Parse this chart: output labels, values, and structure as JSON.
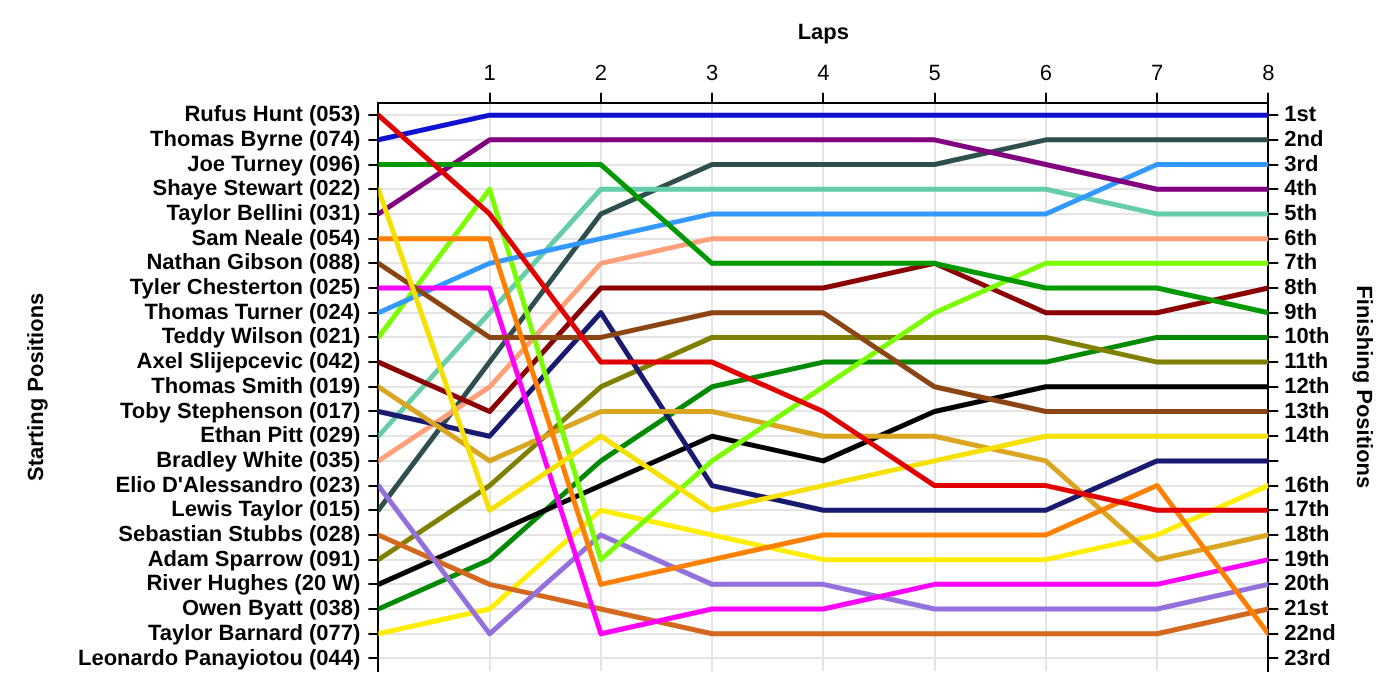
{
  "chart_data": {
    "type": "line",
    "xlabel": "Laps",
    "ylabel": "Finishing Positions",
    "annotations": [
      "Starting Positions",
      "Rufus Hunt (053)",
      "Thomas Byrne (074)",
      "Joe Turney (096)",
      "Shaye Stewart (022)",
      "Taylor Bellini (031)",
      "Sam Neale (054)",
      "Nathan Gibson (088)",
      "Tyler Chesterton (025)",
      "Thomas Turner (024)",
      "Teddy Wilson (021)",
      "Axel Slijepcevic (042)",
      "Thomas Smith (019)",
      "Toby Stephenson (017)",
      "Ethan Pitt (029)",
      "Bradley White (035)",
      "Elio D'Alessandro (023)",
      "Lewis Taylor (015)",
      "Sebastian Stubbs (028)",
      "Adam Sparrow (091)",
      "River Hughes (20 W)",
      "Owen Byatt (038)",
      "Taylor Barnard (077)",
      "Leonardo Panayiotou (044)"
    ],
    "x": [
      0,
      1,
      2,
      3,
      4,
      5,
      6,
      7,
      8
    ],
    "xlim": [
      0,
      8
    ],
    "xticks": [
      1,
      2,
      3,
      4,
      5,
      6,
      7,
      8
    ],
    "ylim": [
      23.5,
      0.5
    ],
    "yticks": [
      {
        "value": 1,
        "label": "1st"
      },
      {
        "value": 2,
        "label": "2nd"
      },
      {
        "value": 3,
        "label": "3rd"
      },
      {
        "value": 4,
        "label": "4th"
      },
      {
        "value": 5,
        "label": "5th"
      },
      {
        "value": 6,
        "label": "6th"
      },
      {
        "value": 7,
        "label": "7th"
      },
      {
        "value": 8,
        "label": "8th"
      },
      {
        "value": 9,
        "label": "9th"
      },
      {
        "value": 10,
        "label": "10th"
      },
      {
        "value": 11,
        "label": "11th"
      },
      {
        "value": 12,
        "label": "12th"
      },
      {
        "value": 13,
        "label": "13th"
      },
      {
        "value": 14,
        "label": "14th"
      },
      {
        "value": 15,
        "label": null
      },
      {
        "value": 16,
        "label": "16th"
      },
      {
        "value": 17,
        "label": "17th"
      },
      {
        "value": 18,
        "label": "18th"
      },
      {
        "value": 19,
        "label": "19th"
      },
      {
        "value": 20,
        "label": "20th"
      },
      {
        "value": 21,
        "label": "21st"
      },
      {
        "value": 22,
        "label": "22nd"
      },
      {
        "value": 23,
        "label": "23rd"
      }
    ],
    "grid": true,
    "legend": false,
    "marker": "none",
    "line_style": "solid",
    "series": [
      {
        "color": "#e00000",
        "values": [
          1,
          5,
          11,
          11,
          13,
          16,
          16,
          17,
          17
        ]
      },
      {
        "color": "#1010d0",
        "values": [
          2,
          1,
          1,
          1,
          1,
          1,
          1,
          1,
          1
        ]
      },
      {
        "color": "#009900",
        "values": [
          3,
          3,
          3,
          7,
          7,
          7,
          8,
          8,
          9
        ]
      },
      {
        "color": "#f5e000",
        "values": [
          4,
          17,
          14,
          17,
          16,
          15,
          14,
          14,
          14
        ]
      },
      {
        "color": "#800080",
        "values": [
          5,
          2,
          2,
          2,
          2,
          2,
          3,
          4,
          4
        ]
      },
      {
        "color": "#ff8000",
        "values": [
          6,
          6,
          20,
          19,
          18,
          18,
          18,
          16,
          22
        ]
      },
      {
        "color": "#8b4513",
        "values": [
          7,
          10,
          10,
          9,
          9,
          12,
          13,
          13,
          13
        ]
      },
      {
        "color": "#ff00ff",
        "values": [
          8,
          8,
          22,
          21,
          21,
          20,
          20,
          20,
          19
        ]
      },
      {
        "color": "#3399ff",
        "values": [
          9,
          7,
          6,
          5,
          5,
          5,
          5,
          3,
          3
        ]
      },
      {
        "color": "#7cfc00",
        "values": [
          10,
          4,
          19,
          15,
          12,
          9,
          7,
          7,
          7
        ]
      },
      {
        "color": "#8b0000",
        "values": [
          11,
          13,
          8,
          8,
          8,
          7,
          9,
          9,
          8
        ]
      },
      {
        "color": "#daa520",
        "values": [
          12,
          15,
          13,
          13,
          14,
          14,
          15,
          19,
          18
        ]
      },
      {
        "color": "#191970",
        "values": [
          13,
          14,
          9,
          16,
          17,
          17,
          17,
          15,
          15
        ]
      },
      {
        "color": "#66cdaa",
        "values": [
          14,
          9,
          4,
          4,
          4,
          4,
          4,
          5,
          5
        ]
      },
      {
        "color": "#ffa07a",
        "values": [
          15,
          12,
          7,
          6,
          6,
          6,
          6,
          6,
          6
        ]
      },
      {
        "color": "#9370db",
        "values": [
          16,
          22,
          18,
          20,
          20,
          21,
          21,
          21,
          20
        ]
      },
      {
        "color": "#2f4f4f",
        "values": [
          17,
          11,
          5,
          3,
          3,
          3,
          2,
          2,
          2
        ]
      },
      {
        "color": "#d2691e",
        "values": [
          18,
          20,
          21,
          22,
          22,
          22,
          22,
          22,
          21
        ]
      },
      {
        "color": "#808000",
        "values": [
          19,
          16,
          12,
          10,
          10,
          10,
          10,
          11,
          11
        ]
      },
      {
        "color": "#000000",
        "values": [
          20,
          18,
          16,
          14,
          15,
          13,
          12,
          12,
          12
        ]
      },
      {
        "color": "#008a00",
        "values": [
          21,
          19,
          15,
          12,
          11,
          11,
          11,
          10,
          10
        ]
      },
      {
        "color": "#ffee00",
        "values": [
          22,
          21,
          17,
          18,
          19,
          19,
          19,
          18,
          16
        ]
      }
    ]
  }
}
